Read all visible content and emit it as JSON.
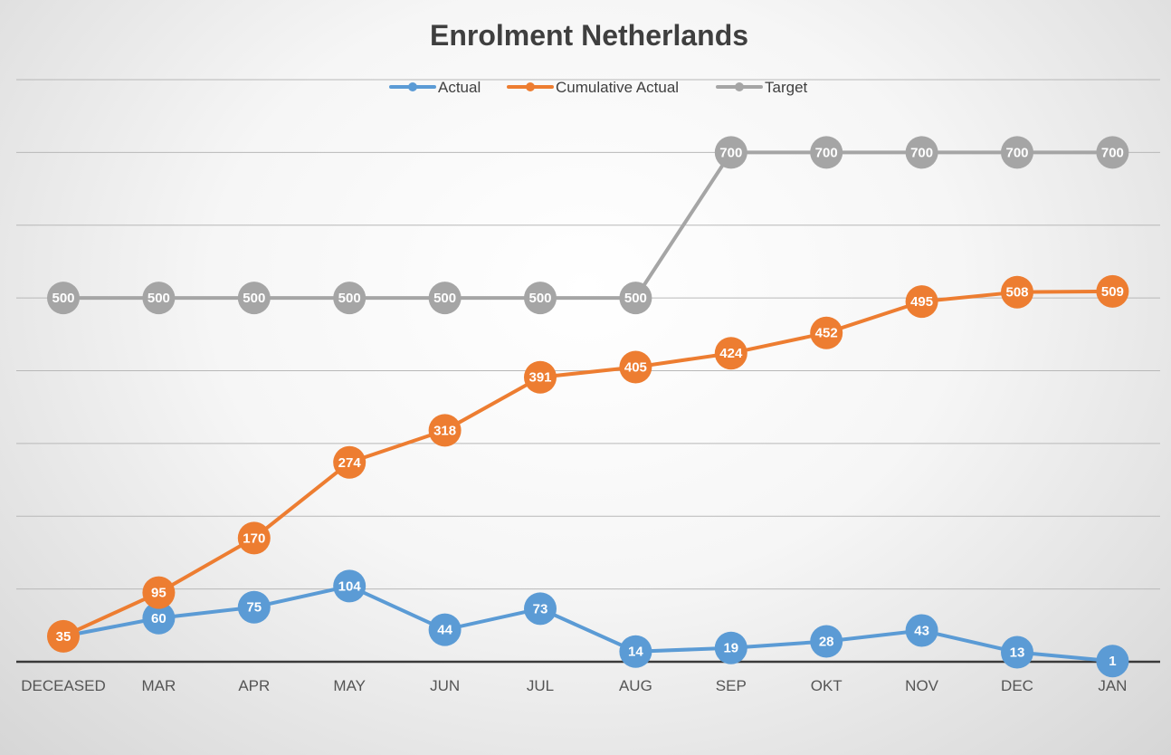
{
  "chart_data": {
    "type": "line",
    "title": "Enrolment Netherlands",
    "xlabel": "",
    "ylabel": "",
    "ylim": [
      0,
      800
    ],
    "grid": true,
    "legend": "top-center",
    "categories": [
      "DECEASED",
      "MAR",
      "APR",
      "MAY",
      "JUN",
      "JUL",
      "AUG",
      "SEP",
      "OKT",
      "NOV",
      "DEC",
      "JAN"
    ],
    "series": [
      {
        "name": "Actual",
        "color": "#5B9BD5",
        "values": [
          35,
          60,
          75,
          104,
          44,
          73,
          14,
          19,
          28,
          43,
          13,
          1
        ],
        "labels": [
          "",
          "60",
          "75",
          "104",
          "44",
          "73",
          "14",
          "19",
          "28",
          "43",
          "13",
          "1"
        ]
      },
      {
        "name": "Cumulative Actual",
        "color": "#ED7D31",
        "values": [
          35,
          95,
          170,
          274,
          318,
          391,
          405,
          424,
          452,
          495,
          508,
          509
        ],
        "labels": [
          "35",
          "95",
          "170",
          "274",
          "318",
          "391",
          "405",
          "424",
          "452",
          "495",
          "508",
          "509"
        ]
      },
      {
        "name": "Target",
        "color": "#A5A5A5",
        "values": [
          500,
          500,
          500,
          500,
          500,
          500,
          500,
          700,
          700,
          700,
          700,
          700
        ],
        "labels": [
          "500",
          "500",
          "500",
          "500",
          "500",
          "500",
          "500",
          "700",
          "700",
          "700",
          "700",
          "700"
        ]
      }
    ]
  }
}
